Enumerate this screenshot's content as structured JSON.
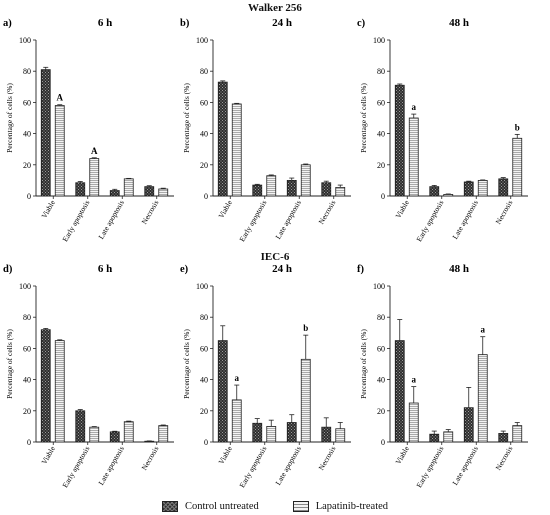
{
  "figure": {
    "group_top_title": "Walker 256",
    "group_bottom_title": "IEC-6",
    "legend": {
      "control_label": "Control untreated",
      "lapatinib_label": "Lapatinib-treated"
    },
    "colors": {
      "control_fill": "#2e2e2e",
      "lapatinib_fill": "#f2f2f2",
      "axis": "#222222"
    }
  },
  "chart_data": [
    {
      "type": "bar",
      "panel": "a)",
      "title": "6 h",
      "ylabel": "Percentage of cells (%)",
      "ylim": [
        0,
        100
      ],
      "yticks": [
        0,
        20,
        40,
        60,
        80,
        100
      ],
      "categories": [
        "Viable",
        "Early apoptosis",
        "Late apoptosis",
        "Necrosis"
      ],
      "series": [
        {
          "name": "Control untreated",
          "values": [
            81,
            8.5,
            3.5,
            6
          ],
          "errors": [
            1.5,
            0.8,
            0.8,
            0.6
          ],
          "labels": [
            "",
            "",
            "",
            ""
          ]
        },
        {
          "name": "Lapatinib-treated",
          "values": [
            58,
            24,
            11,
            4.5
          ],
          "errors": [
            0.5,
            0.5,
            0.3,
            0.5
          ],
          "labels": [
            "A",
            "A",
            "",
            ""
          ]
        }
      ]
    },
    {
      "type": "bar",
      "panel": "b)",
      "title": "24 h",
      "ylabel": "Percentage of cells (%)",
      "ylim": [
        0,
        100
      ],
      "yticks": [
        0,
        20,
        40,
        60,
        80,
        100
      ],
      "categories": [
        "Viable",
        "Early apoptosis",
        "Late apoptosis",
        "Necrosis"
      ],
      "series": [
        {
          "name": "Control untreated",
          "values": [
            73,
            7,
            10,
            8.5
          ],
          "errors": [
            0.8,
            0.5,
            1.5,
            1
          ],
          "labels": [
            "",
            "",
            "",
            ""
          ]
        },
        {
          "name": "Lapatinib-treated",
          "values": [
            59,
            13,
            20,
            5.5
          ],
          "errors": [
            0.4,
            0.5,
            0.5,
            1.5
          ],
          "labels": [
            "",
            "",
            "",
            ""
          ]
        }
      ]
    },
    {
      "type": "bar",
      "panel": "c)",
      "title": "48 h",
      "ylabel": "Percentage of cells (%)",
      "ylim": [
        0,
        100
      ],
      "yticks": [
        0,
        20,
        40,
        60,
        80,
        100
      ],
      "categories": [
        "Viable",
        "Early apoptosis",
        "Late apoptosis",
        "Necrosis"
      ],
      "series": [
        {
          "name": "Control untreated",
          "values": [
            71,
            6,
            9,
            11
          ],
          "errors": [
            0.8,
            0.8,
            0.5,
            0.8
          ],
          "labels": [
            "",
            "",
            "",
            ""
          ]
        },
        {
          "name": "Lapatinib-treated",
          "values": [
            50,
            1,
            10,
            37
          ],
          "errors": [
            2.5,
            0.3,
            0.3,
            2.5
          ],
          "labels": [
            "a",
            "",
            "",
            "b"
          ]
        }
      ]
    },
    {
      "type": "bar",
      "panel": "d)",
      "title": "6 h",
      "ylabel": "Percentage of cells (%)",
      "ylim": [
        0,
        100
      ],
      "yticks": [
        0,
        20,
        40,
        60,
        80,
        100
      ],
      "categories": [
        "Viable",
        "Early apoptosis",
        "Late apoptosis",
        "Necrosis"
      ],
      "series": [
        {
          "name": "Control untreated",
          "values": [
            72,
            20,
            6.5,
            0.5
          ],
          "errors": [
            0.8,
            0.8,
            0.4,
            0.2
          ],
          "labels": [
            "",
            "",
            "",
            ""
          ]
        },
        {
          "name": "Lapatinib-treated",
          "values": [
            65,
            9.5,
            13,
            10.5
          ],
          "errors": [
            0.5,
            0.4,
            0.4,
            0.4
          ],
          "labels": [
            "",
            "",
            "",
            ""
          ]
        }
      ]
    },
    {
      "type": "bar",
      "panel": "e)",
      "title": "24 h",
      "ylabel": "Percentage of cells (%)",
      "ylim": [
        0,
        100
      ],
      "yticks": [
        0,
        20,
        40,
        60,
        80,
        100
      ],
      "categories": [
        "Viable",
        "Early apoptosis",
        "Late apoptosis",
        "Necrosis"
      ],
      "series": [
        {
          "name": "Control untreated",
          "values": [
            65,
            12,
            12.5,
            9.5
          ],
          "errors": [
            9.5,
            3,
            5,
            6
          ],
          "labels": [
            "",
            "",
            "",
            ""
          ]
        },
        {
          "name": "Lapatinib-treated",
          "values": [
            27,
            10,
            53,
            8.5
          ],
          "errors": [
            9.5,
            4,
            15.5,
            4
          ],
          "labels": [
            "a",
            "",
            "b",
            ""
          ]
        }
      ]
    },
    {
      "type": "bar",
      "panel": "f)",
      "title": "48 h",
      "ylabel": "Percentage of cells (%)",
      "ylim": [
        0,
        100
      ],
      "yticks": [
        0,
        20,
        40,
        60,
        80,
        100
      ],
      "categories": [
        "Viable",
        "Early apoptosis",
        "Late apoptosis",
        "Necrosis"
      ],
      "series": [
        {
          "name": "Control untreated",
          "values": [
            65,
            5,
            22,
            5.5
          ],
          "errors": [
            13.5,
            2,
            13,
            1.5
          ],
          "labels": [
            "",
            "",
            "",
            ""
          ]
        },
        {
          "name": "Lapatinib-treated",
          "values": [
            25,
            6.5,
            56,
            10.5
          ],
          "errors": [
            10.5,
            1.5,
            11.5,
            2
          ],
          "labels": [
            "a",
            "",
            "a",
            ""
          ]
        }
      ]
    }
  ]
}
